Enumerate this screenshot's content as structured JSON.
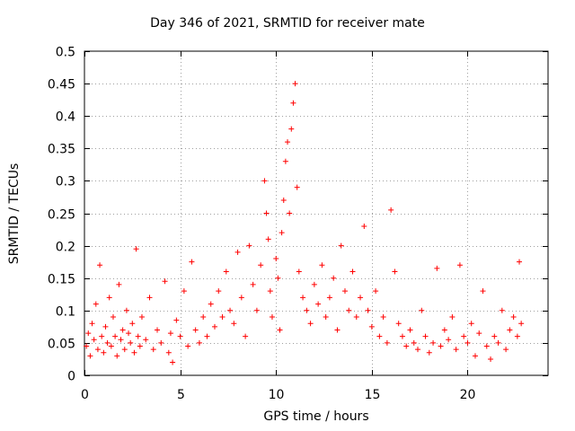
{
  "chart_data": {
    "type": "scatter",
    "title": "Day 346 of 2021, SRMTID for receiver mate",
    "xlabel": "GPS time / hours",
    "ylabel": "SRMTID / TECUs",
    "xlim": [
      0,
      24.2
    ],
    "ylim": [
      0,
      0.5
    ],
    "xticks": [
      0,
      5,
      10,
      15,
      20
    ],
    "xtick_labels": [
      "0",
      "5",
      "10",
      "15",
      "20"
    ],
    "yticks": [
      0,
      0.05,
      0.1,
      0.15,
      0.2,
      0.25,
      0.3,
      0.35,
      0.4,
      0.45,
      0.5
    ],
    "ytick_labels": [
      "0",
      "0.05",
      "0.1",
      "0.15",
      "0.2",
      "0.25",
      "0.3",
      "0.35",
      "0.4",
      "0.45",
      "0.5"
    ],
    "grid": true,
    "marker": "+",
    "color": "#ff0000",
    "series": [
      {
        "name": "SRMTID",
        "points": [
          [
            0.1,
            0.045
          ],
          [
            0.2,
            0.065
          ],
          [
            0.3,
            0.03
          ],
          [
            0.4,
            0.08
          ],
          [
            0.5,
            0.055
          ],
          [
            0.6,
            0.11
          ],
          [
            0.7,
            0.04
          ],
          [
            0.8,
            0.17
          ],
          [
            0.9,
            0.06
          ],
          [
            1.0,
            0.035
          ],
          [
            1.1,
            0.075
          ],
          [
            1.2,
            0.05
          ],
          [
            1.3,
            0.12
          ],
          [
            1.4,
            0.045
          ],
          [
            1.5,
            0.09
          ],
          [
            1.6,
            0.06
          ],
          [
            1.7,
            0.03
          ],
          [
            1.8,
            0.14
          ],
          [
            1.9,
            0.055
          ],
          [
            2.0,
            0.07
          ],
          [
            2.1,
            0.04
          ],
          [
            2.2,
            0.1
          ],
          [
            2.3,
            0.065
          ],
          [
            2.4,
            0.05
          ],
          [
            2.5,
            0.08
          ],
          [
            2.6,
            0.035
          ],
          [
            2.7,
            0.195
          ],
          [
            2.8,
            0.06
          ],
          [
            2.9,
            0.045
          ],
          [
            3.0,
            0.09
          ],
          [
            3.2,
            0.055
          ],
          [
            3.4,
            0.12
          ],
          [
            3.6,
            0.04
          ],
          [
            3.8,
            0.07
          ],
          [
            4.0,
            0.05
          ],
          [
            4.2,
            0.145
          ],
          [
            4.4,
            0.035
          ],
          [
            4.5,
            0.065
          ],
          [
            4.6,
            0.02
          ],
          [
            4.8,
            0.085
          ],
          [
            5.0,
            0.06
          ],
          [
            5.2,
            0.13
          ],
          [
            5.4,
            0.045
          ],
          [
            5.6,
            0.175
          ],
          [
            5.8,
            0.07
          ],
          [
            6.0,
            0.05
          ],
          [
            6.2,
            0.09
          ],
          [
            6.4,
            0.06
          ],
          [
            6.6,
            0.11
          ],
          [
            6.8,
            0.075
          ],
          [
            7.0,
            0.13
          ],
          [
            7.2,
            0.09
          ],
          [
            7.4,
            0.16
          ],
          [
            7.6,
            0.1
          ],
          [
            7.8,
            0.08
          ],
          [
            8.0,
            0.19
          ],
          [
            8.2,
            0.12
          ],
          [
            8.4,
            0.06
          ],
          [
            8.6,
            0.2
          ],
          [
            8.8,
            0.14
          ],
          [
            9.0,
            0.1
          ],
          [
            9.2,
            0.17
          ],
          [
            9.4,
            0.3
          ],
          [
            9.5,
            0.25
          ],
          [
            9.6,
            0.21
          ],
          [
            9.7,
            0.13
          ],
          [
            9.8,
            0.09
          ],
          [
            10.0,
            0.18
          ],
          [
            10.1,
            0.15
          ],
          [
            10.2,
            0.07
          ],
          [
            10.3,
            0.22
          ],
          [
            10.4,
            0.27
          ],
          [
            10.5,
            0.33
          ],
          [
            10.6,
            0.36
          ],
          [
            10.7,
            0.25
          ],
          [
            10.8,
            0.38
          ],
          [
            10.9,
            0.42
          ],
          [
            11.0,
            0.45
          ],
          [
            11.1,
            0.29
          ],
          [
            11.2,
            0.16
          ],
          [
            11.4,
            0.12
          ],
          [
            11.6,
            0.1
          ],
          [
            11.8,
            0.08
          ],
          [
            12.0,
            0.14
          ],
          [
            12.2,
            0.11
          ],
          [
            12.4,
            0.17
          ],
          [
            12.6,
            0.09
          ],
          [
            12.8,
            0.12
          ],
          [
            13.0,
            0.15
          ],
          [
            13.2,
            0.07
          ],
          [
            13.4,
            0.2
          ],
          [
            13.6,
            0.13
          ],
          [
            13.8,
            0.1
          ],
          [
            14.0,
            0.16
          ],
          [
            14.2,
            0.09
          ],
          [
            14.4,
            0.12
          ],
          [
            14.6,
            0.23
          ],
          [
            14.8,
            0.1
          ],
          [
            15.0,
            0.075
          ],
          [
            15.2,
            0.13
          ],
          [
            15.4,
            0.06
          ],
          [
            15.6,
            0.09
          ],
          [
            15.8,
            0.05
          ],
          [
            16.0,
            0.255
          ],
          [
            16.2,
            0.16
          ],
          [
            16.4,
            0.08
          ],
          [
            16.6,
            0.06
          ],
          [
            16.8,
            0.045
          ],
          [
            17.0,
            0.07
          ],
          [
            17.2,
            0.05
          ],
          [
            17.4,
            0.04
          ],
          [
            17.6,
            0.1
          ],
          [
            17.8,
            0.06
          ],
          [
            18.0,
            0.035
          ],
          [
            18.2,
            0.05
          ],
          [
            18.4,
            0.165
          ],
          [
            18.6,
            0.045
          ],
          [
            18.8,
            0.07
          ],
          [
            19.0,
            0.055
          ],
          [
            19.2,
            0.09
          ],
          [
            19.4,
            0.04
          ],
          [
            19.6,
            0.17
          ],
          [
            19.8,
            0.06
          ],
          [
            20.0,
            0.05
          ],
          [
            20.2,
            0.08
          ],
          [
            20.4,
            0.03
          ],
          [
            20.6,
            0.065
          ],
          [
            20.8,
            0.13
          ],
          [
            21.0,
            0.045
          ],
          [
            21.2,
            0.025
          ],
          [
            21.4,
            0.06
          ],
          [
            21.6,
            0.05
          ],
          [
            21.8,
            0.1
          ],
          [
            22.0,
            0.04
          ],
          [
            22.2,
            0.07
          ],
          [
            22.4,
            0.09
          ],
          [
            22.6,
            0.06
          ],
          [
            22.7,
            0.175
          ],
          [
            22.8,
            0.08
          ]
        ]
      }
    ]
  }
}
